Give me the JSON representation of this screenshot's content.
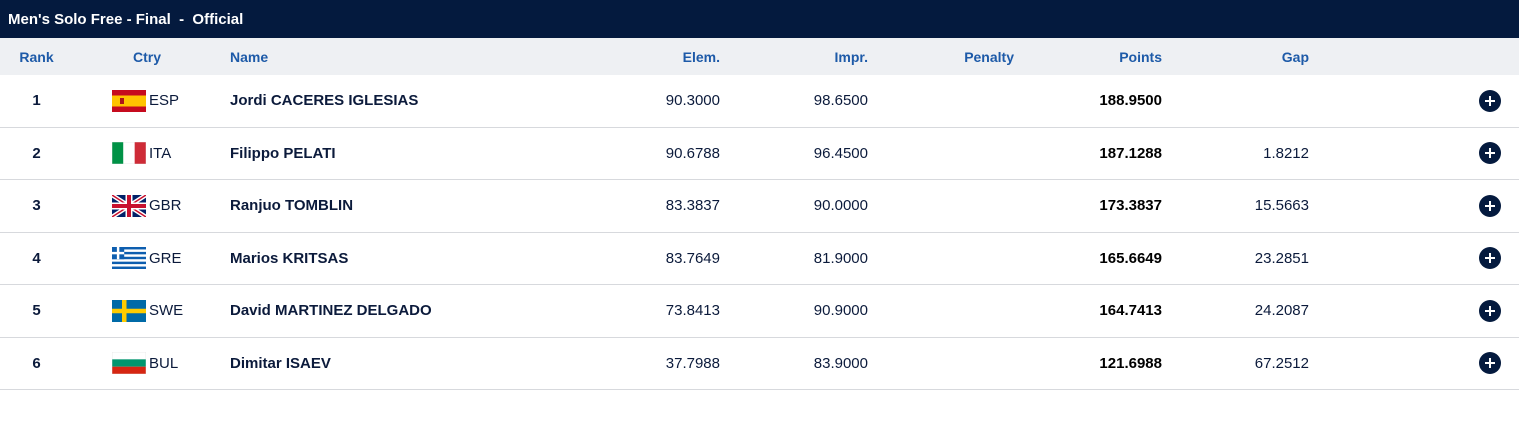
{
  "title": "Men's Solo Free - Final  -  Official",
  "headers": {
    "rank": "Rank",
    "ctry": "Ctry",
    "name": "Name",
    "elem": "Elem.",
    "impr": "Impr.",
    "penalty": "Penalty",
    "points": "Points",
    "gap": "Gap"
  },
  "rows": [
    {
      "rank": "1",
      "flag": "spain-flag-icon",
      "ctry": "ESP",
      "name": "Jordi CACERES IGLESIAS",
      "elem": "90.3000",
      "impr": "98.6500",
      "penalty": "",
      "points": "188.9500",
      "gap": ""
    },
    {
      "rank": "2",
      "flag": "italy-flag-icon",
      "ctry": "ITA",
      "name": "Filippo PELATI",
      "elem": "90.6788",
      "impr": "96.4500",
      "penalty": "",
      "points": "187.1288",
      "gap": "1.8212"
    },
    {
      "rank": "3",
      "flag": "great-britain-flag-icon",
      "ctry": "GBR",
      "name": "Ranjuo TOMBLIN",
      "elem": "83.3837",
      "impr": "90.0000",
      "penalty": "",
      "points": "173.3837",
      "gap": "15.5663"
    },
    {
      "rank": "4",
      "flag": "greece-flag-icon",
      "ctry": "GRE",
      "name": "Marios KRITSAS",
      "elem": "83.7649",
      "impr": "81.9000",
      "penalty": "",
      "points": "165.6649",
      "gap": "23.2851"
    },
    {
      "rank": "5",
      "flag": "sweden-flag-icon",
      "ctry": "SWE",
      "name": "David MARTINEZ DELGADO",
      "elem": "73.8413",
      "impr": "90.9000",
      "penalty": "",
      "points": "164.7413",
      "gap": "24.2087"
    },
    {
      "rank": "6",
      "flag": "bulgaria-flag-icon",
      "ctry": "BUL",
      "name": "Dimitar ISAEV",
      "elem": "37.7988",
      "impr": "83.9000",
      "penalty": "",
      "points": "121.6988",
      "gap": "67.2512"
    }
  ],
  "expand_icon": "plus-circle-icon",
  "colors": {
    "title_bar_bg": "#041a3e",
    "header_bg": "#eef0f3",
    "header_text": "#1d5aa8",
    "row_text": "#0b1a3b",
    "divider": "#d7d9dd"
  }
}
